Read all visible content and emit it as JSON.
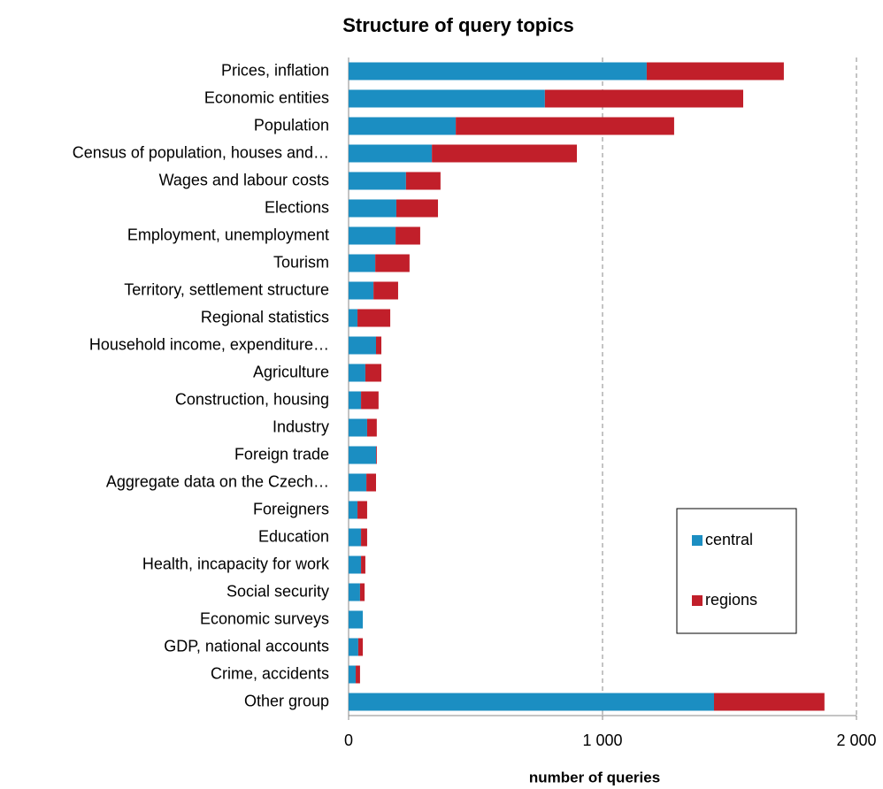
{
  "chart_data": {
    "type": "stacked_barh",
    "title": "Structure of query topics",
    "x_label": "number of queries",
    "categories": [
      "Prices, inflation",
      "Economic entities",
      "Population",
      "Census of population, houses and…",
      "Wages and labour costs",
      "Elections",
      "Employment, unemployment",
      "Tourism",
      "Territory, settlement structure",
      "Regional statistics",
      "Household income, expenditure…",
      "Agriculture",
      "Construction, housing",
      "Industry",
      "Foreign trade",
      "Aggregate data on the Czech…",
      "Foreigners",
      "Education",
      "Health, incapacity for work",
      "Social security",
      "Economic surveys",
      "GDP, national accounts",
      "Crime, accidents",
      "Other group"
    ],
    "series": [
      {
        "name": "central",
        "color": "#1b8ec2",
        "values": [
          1174,
          773,
          422,
          328,
          226,
          188,
          185,
          105,
          98,
          35,
          108,
          66,
          49,
          73,
          108,
          70,
          35,
          49,
          49,
          45,
          56,
          38,
          28,
          1439
        ]
      },
      {
        "name": "regions",
        "color": "#c11f2a",
        "values": [
          540,
          781,
          860,
          571,
          136,
          164,
          97,
          135,
          97,
          129,
          21,
          63,
          69,
          38,
          3,
          38,
          38,
          24,
          17,
          18,
          0,
          18,
          17,
          435
        ]
      }
    ],
    "xlim": [
      0,
      2000
    ],
    "xticks": [
      0,
      {
        "value": 1000,
        "label": "1 000"
      },
      {
        "value": 2000,
        "label": "2 000"
      }
    ],
    "grid": true
  }
}
